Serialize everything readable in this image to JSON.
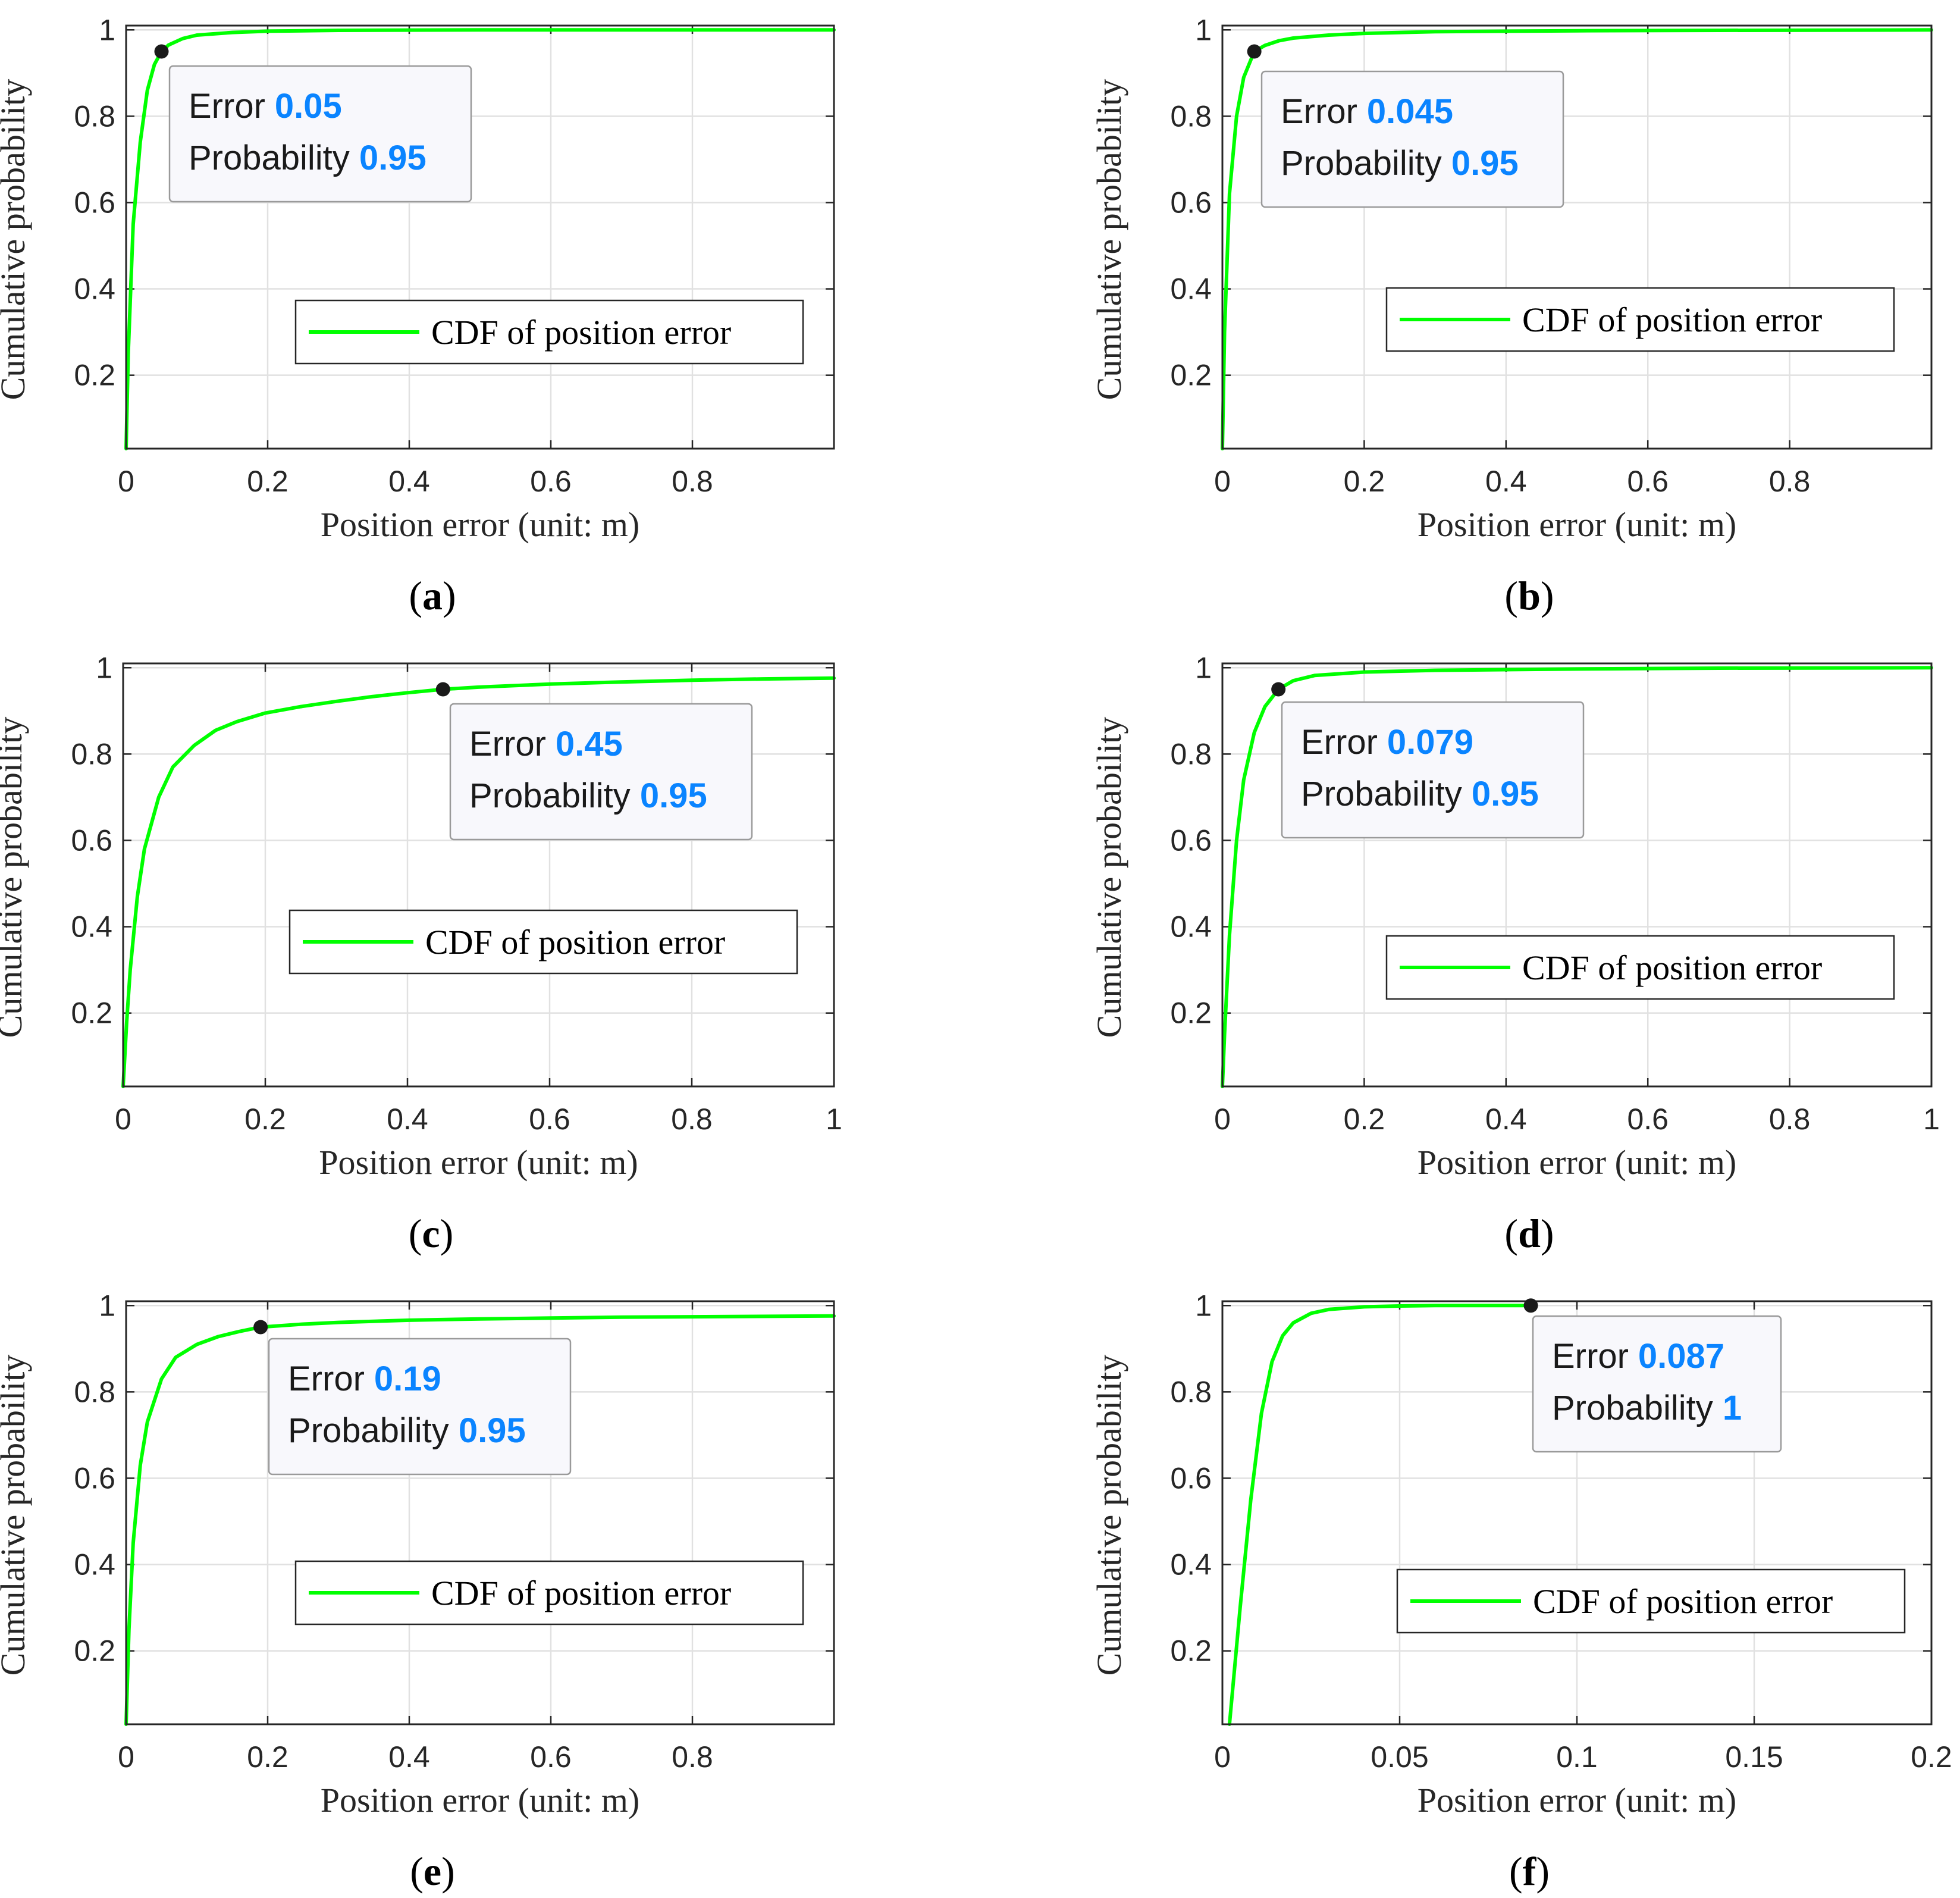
{
  "colors": {
    "curve": "#00ff00",
    "grid": "#e1e1e1",
    "axis": "#262626",
    "tip_value": "#0a84ff",
    "tip_bg": "#f8f8fc",
    "tip_border": "#9a9a9a",
    "marker": "#1a1a1a"
  },
  "chart_data": [
    {
      "panel": "a",
      "caption": "a",
      "type": "line",
      "xlabel": "Position error (unit: m)",
      "ylabel": "Cumulative probability",
      "xlim": [
        0,
        1
      ],
      "ylim": [
        0.03,
        1.01
      ],
      "xticks": [
        0,
        0.2,
        0.4,
        0.6,
        0.8
      ],
      "xtick_labels": [
        "0",
        "0.2",
        "0.4",
        "0.6",
        "0.8"
      ],
      "yticks": [
        0.2,
        0.4,
        0.6,
        0.8,
        1
      ],
      "ytick_labels": [
        "0.2",
        "0.4",
        "0.6",
        "0.8",
        "1"
      ],
      "grid": true,
      "legend": "CDF of position error",
      "legend_position": "lower-right",
      "series": [
        {
          "name": "CDF of position error",
          "x": [
            0,
            0.003,
            0.01,
            0.02,
            0.03,
            0.04,
            0.05,
            0.06,
            0.08,
            0.1,
            0.15,
            0.2,
            0.3,
            0.5,
            1.0
          ],
          "y": [
            0.03,
            0.25,
            0.55,
            0.74,
            0.86,
            0.92,
            0.95,
            0.965,
            0.98,
            0.988,
            0.994,
            0.997,
            0.999,
            1.0,
            1.0
          ]
        }
      ],
      "datatip": {
        "x": 0.05,
        "y": 0.95,
        "error_label": "Error",
        "error": "0.05",
        "prob_label": "Probability",
        "prob": "0.95"
      }
    },
    {
      "panel": "b",
      "caption": "b",
      "type": "line",
      "xlabel": "Position error (unit: m)",
      "ylabel": "Cumulative probability",
      "xlim": [
        0,
        1
      ],
      "ylim": [
        0.03,
        1.01
      ],
      "xticks": [
        0,
        0.2,
        0.4,
        0.6,
        0.8
      ],
      "xtick_labels": [
        "0",
        "0.2",
        "0.4",
        "0.6",
        "0.8"
      ],
      "yticks": [
        0.2,
        0.4,
        0.6,
        0.8,
        1
      ],
      "ytick_labels": [
        "0.2",
        "0.4",
        "0.6",
        "0.8",
        "1"
      ],
      "grid": true,
      "legend": "CDF of position error",
      "legend_position": "lower-right",
      "series": [
        {
          "name": "CDF of position error",
          "x": [
            0,
            0.003,
            0.01,
            0.02,
            0.03,
            0.045,
            0.06,
            0.08,
            0.1,
            0.15,
            0.2,
            0.3,
            0.5,
            0.7,
            1.0
          ],
          "y": [
            0.03,
            0.3,
            0.62,
            0.8,
            0.89,
            0.95,
            0.964,
            0.975,
            0.981,
            0.988,
            0.992,
            0.996,
            0.998,
            0.999,
            1.0
          ]
        }
      ],
      "datatip": {
        "x": 0.045,
        "y": 0.95,
        "error_label": "Error",
        "error": "0.045",
        "prob_label": "Probability",
        "prob": "0.95"
      }
    },
    {
      "panel": "c",
      "caption": "c",
      "type": "line",
      "xlabel": "Position error (unit: m)",
      "ylabel": "Cumulative probability",
      "xlim": [
        0,
        1
      ],
      "ylim": [
        0.03,
        1.01
      ],
      "xticks": [
        0,
        0.2,
        0.4,
        0.6,
        0.8,
        1
      ],
      "xtick_labels": [
        "0",
        "0.2",
        "0.4",
        "0.6",
        "0.8",
        "1"
      ],
      "yticks": [
        0.2,
        0.4,
        0.6,
        0.8,
        1
      ],
      "ytick_labels": [
        "0.2",
        "0.4",
        "0.6",
        "0.8",
        "1"
      ],
      "grid": true,
      "legend": "CDF of position error",
      "legend_position": "lower-right",
      "series": [
        {
          "name": "CDF of position error",
          "x": [
            0,
            0.005,
            0.01,
            0.02,
            0.03,
            0.05,
            0.07,
            0.1,
            0.13,
            0.16,
            0.2,
            0.25,
            0.3,
            0.35,
            0.4,
            0.45,
            0.5,
            0.6,
            0.7,
            0.8,
            0.9,
            1.0
          ],
          "y": [
            0.03,
            0.18,
            0.3,
            0.47,
            0.58,
            0.7,
            0.77,
            0.82,
            0.855,
            0.875,
            0.895,
            0.91,
            0.922,
            0.933,
            0.942,
            0.95,
            0.955,
            0.962,
            0.967,
            0.971,
            0.974,
            0.976
          ]
        }
      ],
      "datatip": {
        "x": 0.45,
        "y": 0.95,
        "error_label": "Error",
        "error": "0.45",
        "prob_label": "Probability",
        "prob": "0.95"
      }
    },
    {
      "panel": "d",
      "caption": "d",
      "type": "line",
      "xlabel": "Position error (unit: m)",
      "ylabel": "Cumulative probability",
      "xlim": [
        0,
        1
      ],
      "ylim": [
        0.03,
        1.01
      ],
      "xticks": [
        0,
        0.2,
        0.4,
        0.6,
        0.8,
        1
      ],
      "xtick_labels": [
        "0",
        "0.2",
        "0.4",
        "0.6",
        "0.8",
        "1"
      ],
      "yticks": [
        0.2,
        0.4,
        0.6,
        0.8,
        1
      ],
      "ytick_labels": [
        "0.2",
        "0.4",
        "0.6",
        "0.8",
        "1"
      ],
      "grid": true,
      "legend": "CDF of position error",
      "legend_position": "lower-right",
      "series": [
        {
          "name": "CDF of position error",
          "x": [
            0,
            0.003,
            0.01,
            0.02,
            0.03,
            0.045,
            0.06,
            0.079,
            0.1,
            0.13,
            0.2,
            0.3,
            0.5,
            0.7,
            1.0
          ],
          "y": [
            0.03,
            0.15,
            0.38,
            0.6,
            0.74,
            0.85,
            0.91,
            0.95,
            0.97,
            0.982,
            0.99,
            0.994,
            0.997,
            0.999,
            1.0
          ]
        }
      ],
      "datatip": {
        "x": 0.079,
        "y": 0.95,
        "error_label": "Error",
        "error": "0.079",
        "prob_label": "Probability",
        "prob": "0.95"
      }
    },
    {
      "panel": "e",
      "caption": "e",
      "type": "line",
      "xlabel": "Position error (unit: m)",
      "ylabel": "Cumulative probability",
      "xlim": [
        0,
        1
      ],
      "ylim": [
        0.03,
        1.01
      ],
      "xticks": [
        0,
        0.2,
        0.4,
        0.6,
        0.8
      ],
      "xtick_labels": [
        "0",
        "0.2",
        "0.4",
        "0.6",
        "0.8"
      ],
      "yticks": [
        0.2,
        0.4,
        0.6,
        0.8,
        1
      ],
      "ytick_labels": [
        "0.2",
        "0.4",
        "0.6",
        "0.8",
        "1"
      ],
      "grid": true,
      "legend": "CDF of position error",
      "legend_position": "lower-right",
      "series": [
        {
          "name": "CDF of position error",
          "x": [
            0,
            0.004,
            0.01,
            0.02,
            0.03,
            0.05,
            0.07,
            0.1,
            0.13,
            0.16,
            0.19,
            0.25,
            0.3,
            0.4,
            0.5,
            0.6,
            0.7,
            0.8,
            1.0
          ],
          "y": [
            0.03,
            0.25,
            0.45,
            0.63,
            0.73,
            0.83,
            0.88,
            0.91,
            0.928,
            0.94,
            0.95,
            0.957,
            0.961,
            0.966,
            0.969,
            0.971,
            0.973,
            0.974,
            0.976
          ]
        }
      ],
      "datatip": {
        "x": 0.19,
        "y": 0.95,
        "error_label": "Error",
        "error": "0.19",
        "prob_label": "Probability",
        "prob": "0.95"
      }
    },
    {
      "panel": "f",
      "caption": "f",
      "type": "line",
      "xlabel": "Position error (unit: m)",
      "ylabel": "Cumulative probability",
      "xlim": [
        0,
        0.2
      ],
      "ylim": [
        0.03,
        1.01
      ],
      "xticks": [
        0,
        0.05,
        0.1,
        0.15,
        0.2
      ],
      "xtick_labels": [
        "0",
        "0.05",
        "0.1",
        "0.15",
        "0.2"
      ],
      "yticks": [
        0.2,
        0.4,
        0.6,
        0.8,
        1
      ],
      "ytick_labels": [
        "0.2",
        "0.4",
        "0.6",
        "0.8",
        "1"
      ],
      "grid": true,
      "legend": "CDF of position error",
      "legend_position": "lower-right",
      "series": [
        {
          "name": "CDF of position error",
          "x": [
            0.002,
            0.005,
            0.008,
            0.011,
            0.014,
            0.017,
            0.02,
            0.025,
            0.03,
            0.04,
            0.05,
            0.06,
            0.087
          ],
          "y": [
            0.03,
            0.3,
            0.55,
            0.75,
            0.87,
            0.93,
            0.96,
            0.982,
            0.991,
            0.997,
            0.999,
            1.0,
            1.0
          ]
        }
      ],
      "datatip": {
        "x": 0.087,
        "y": 1.0,
        "error_label": "Error",
        "error": "0.087",
        "prob_label": "Probability",
        "prob": "1"
      }
    }
  ]
}
